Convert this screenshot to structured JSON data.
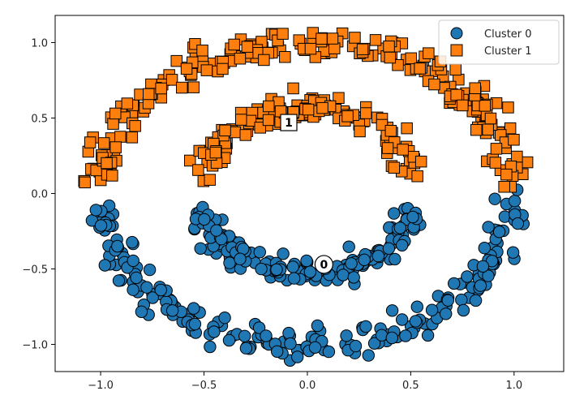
{
  "chart_data": {
    "type": "scatter",
    "title": "",
    "xlabel": "",
    "ylabel": "",
    "xlim": [
      -1.22,
      1.24
    ],
    "ylim": [
      -1.18,
      1.18
    ],
    "x_ticks": [
      -1.0,
      -0.5,
      0.0,
      0.5,
      1.0
    ],
    "x_tick_labels": [
      "−1.0",
      "−0.5",
      "0.0",
      "0.5",
      "1.0"
    ],
    "y_ticks": [
      -1.0,
      -0.5,
      0.0,
      0.5,
      1.0
    ],
    "y_tick_labels": [
      "−1.0",
      "−0.5",
      "0.0",
      "0.5",
      "1.0"
    ],
    "grid": false,
    "legend": {
      "placement": "top-right",
      "entries": [
        {
          "label": "Cluster 0",
          "marker": "circle",
          "color": "#1f77b4"
        },
        {
          "label": "Cluster 1",
          "marker": "square",
          "color": "#ff7f0e"
        }
      ]
    },
    "series": [
      {
        "name": "Cluster 0",
        "marker": "circle",
        "color": "#1f77b4",
        "edge_color": "#000000",
        "description_of_shape": "lower halves of outer ring (radius ~1.0) and inner ring (radius ~0.5, centered at ~(0.5, -0.25) in the moons sense)",
        "outer_ring": {
          "center": [
            0.0,
            0.0
          ],
          "radius": 1.0,
          "angle_range_deg": [
            185,
            355
          ],
          "noise": 0.05,
          "count": 220
        },
        "inner_ring": {
          "center": [
            0.0,
            -0.05
          ],
          "radius_x": 0.52,
          "radius_y": 0.47,
          "angle_range_deg": [
            190,
            350
          ],
          "noise": 0.04,
          "count": 160
        }
      },
      {
        "name": "Cluster 1",
        "marker": "square",
        "color": "#ff7f0e",
        "edge_color": "#000000",
        "description_of_shape": "upper halves of outer ring and inner ring",
        "outer_ring": {
          "center": [
            0.0,
            0.0
          ],
          "radius": 1.0,
          "angle_range_deg": [
            5,
            175
          ],
          "noise": 0.05,
          "count": 230
        },
        "inner_ring": {
          "center": [
            0.0,
            0.05
          ],
          "radius_x": 0.52,
          "radius_y": 0.5,
          "angle_range_deg": [
            10,
            170
          ],
          "noise": 0.04,
          "count": 150
        }
      }
    ],
    "centroids": [
      {
        "label": "0",
        "x": 0.08,
        "y": -0.47,
        "shape": "circle"
      },
      {
        "label": "1",
        "x": -0.09,
        "y": 0.47,
        "shape": "square"
      }
    ]
  }
}
